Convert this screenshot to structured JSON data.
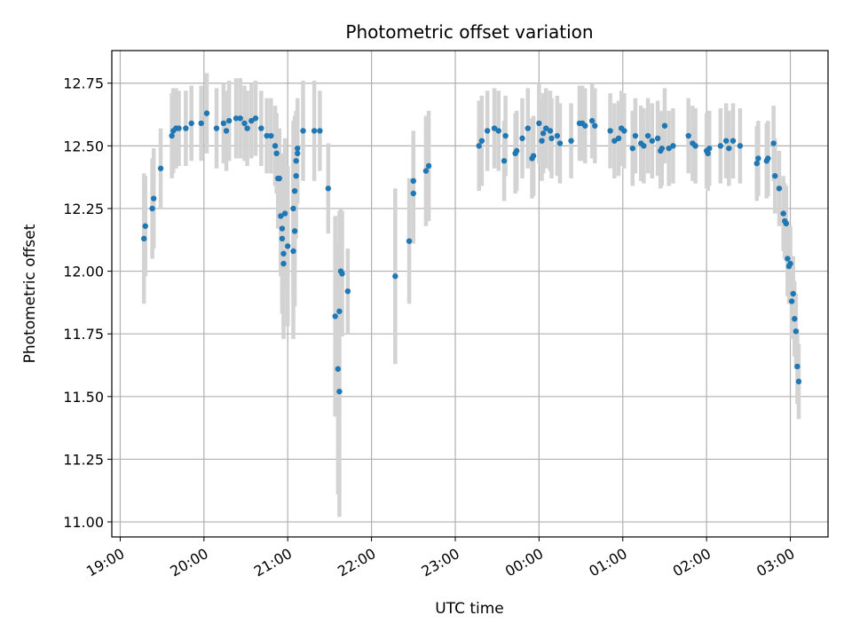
{
  "chart_data": {
    "type": "scatter",
    "title": "Photometric offset variation",
    "xlabel": "UTC time",
    "ylabel": "Photometric offset",
    "grid": true,
    "x_tick_labels": [
      "19:00",
      "20:00",
      "21:00",
      "22:00",
      "23:00",
      "00:00",
      "01:00",
      "02:00",
      "03:00"
    ],
    "y_tick_labels": [
      "11.00",
      "11.25",
      "11.50",
      "11.75",
      "12.00",
      "12.25",
      "12.50",
      "12.75"
    ],
    "x_ticks_hours": [
      19,
      20,
      21,
      22,
      23,
      24,
      25,
      26,
      27
    ],
    "y_ticks": [
      11.0,
      11.25,
      11.5,
      11.75,
      12.0,
      12.25,
      12.5,
      12.75
    ],
    "xlim_hours": [
      18.9,
      27.45
    ],
    "ylim": [
      10.94,
      12.88
    ],
    "colors": {
      "marker": "#1f77b4",
      "errorbar": "#d3d3d3",
      "grid": "#b0b0b0"
    },
    "points": [
      [
        "19:17",
        12.13,
        0.26
      ],
      [
        "19:18",
        12.18,
        0.2
      ],
      [
        "19:23",
        12.25,
        0.2
      ],
      [
        "19:24",
        12.29,
        0.2
      ],
      [
        "19:29",
        12.41,
        0.16
      ],
      [
        "19:37",
        12.54,
        0.17
      ],
      [
        "19:38",
        12.56,
        0.17
      ],
      [
        "19:40",
        12.57,
        0.16
      ],
      [
        "19:42",
        12.57,
        0.15
      ],
      [
        "19:47",
        12.57,
        0.15
      ],
      [
        "19:51",
        12.59,
        0.15
      ],
      [
        "19:58",
        12.59,
        0.15
      ],
      [
        "20:02",
        12.63,
        0.16
      ],
      [
        "20:09",
        12.57,
        0.16
      ],
      [
        "20:14",
        12.59,
        0.16
      ],
      [
        "20:16",
        12.56,
        0.16
      ],
      [
        "20:18",
        12.6,
        0.16
      ],
      [
        "20:23",
        12.61,
        0.16
      ],
      [
        "20:26",
        12.61,
        0.16
      ],
      [
        "20:29",
        12.59,
        0.15
      ],
      [
        "20:31",
        12.57,
        0.15
      ],
      [
        "20:34",
        12.6,
        0.15
      ],
      [
        "20:37",
        12.61,
        0.15
      ],
      [
        "20:41",
        12.57,
        0.15
      ],
      [
        "20:45",
        12.54,
        0.15
      ],
      [
        "20:48",
        12.54,
        0.15
      ],
      [
        "20:51",
        12.5,
        0.16
      ],
      [
        "20:52",
        12.47,
        0.16
      ],
      [
        "20:53",
        12.37,
        0.2
      ],
      [
        "20:54",
        12.37,
        0.2
      ],
      [
        "20:55",
        12.22,
        0.24
      ],
      [
        "20:56",
        12.17,
        0.3
      ],
      [
        "20:56",
        12.13,
        0.3
      ],
      [
        "20:57",
        12.07,
        0.3
      ],
      [
        "20:57",
        12.03,
        0.3
      ],
      [
        "20:58",
        12.23,
        0.3
      ],
      [
        "21:00",
        12.1,
        0.32
      ],
      [
        "21:04",
        12.08,
        0.35
      ],
      [
        "21:04",
        12.25,
        0.35
      ],
      [
        "21:05",
        12.32,
        0.3
      ],
      [
        "21:05",
        12.16,
        0.3
      ],
      [
        "21:06",
        12.38,
        0.25
      ],
      [
        "21:06",
        12.44,
        0.2
      ],
      [
        "21:07",
        12.47,
        0.2
      ],
      [
        "21:07",
        12.49,
        0.2
      ],
      [
        "21:11",
        12.56,
        0.2
      ],
      [
        "21:19",
        12.56,
        0.2
      ],
      [
        "21:23",
        12.56,
        0.16
      ],
      [
        "21:29",
        12.33,
        0.18
      ],
      [
        "21:34",
        11.82,
        0.4
      ],
      [
        "21:36",
        11.61,
        0.5
      ],
      [
        "21:37",
        11.52,
        0.5
      ],
      [
        "21:37",
        11.84,
        0.4
      ],
      [
        "21:38",
        12.0,
        0.25
      ],
      [
        "21:39",
        11.99,
        0.25
      ],
      [
        "21:43",
        11.92,
        0.17
      ],
      [
        "22:17",
        11.98,
        0.35
      ],
      [
        "22:27",
        12.12,
        0.25
      ],
      [
        "22:30",
        12.31,
        0.2
      ],
      [
        "22:30",
        12.36,
        0.2
      ],
      [
        "22:39",
        12.4,
        0.22
      ],
      [
        "22:41",
        12.42,
        0.22
      ],
      [
        "23:17",
        12.5,
        0.18
      ],
      [
        "23:19",
        12.52,
        0.18
      ],
      [
        "23:23",
        12.56,
        0.16
      ],
      [
        "23:28",
        12.57,
        0.16
      ],
      [
        "23:31",
        12.56,
        0.16
      ],
      [
        "23:35",
        12.44,
        0.16
      ],
      [
        "23:36",
        12.54,
        0.16
      ],
      [
        "23:43",
        12.47,
        0.16
      ],
      [
        "23:44",
        12.48,
        0.16
      ],
      [
        "23:48",
        12.53,
        0.16
      ],
      [
        "23:52",
        12.57,
        0.16
      ],
      [
        "23:55",
        12.45,
        0.16
      ],
      [
        "23:56",
        12.46,
        0.16
      ],
      [
        "00:00",
        12.59,
        0.16
      ],
      [
        "00:02",
        12.52,
        0.16
      ],
      [
        "00:03",
        12.55,
        0.16
      ],
      [
        "00:05",
        12.57,
        0.16
      ],
      [
        "00:08",
        12.56,
        0.16
      ],
      [
        "00:09",
        12.53,
        0.16
      ],
      [
        "00:13",
        12.54,
        0.16
      ],
      [
        "00:15",
        12.51,
        0.16
      ],
      [
        "00:23",
        12.52,
        0.15
      ],
      [
        "00:29",
        12.59,
        0.15
      ],
      [
        "00:31",
        12.59,
        0.15
      ],
      [
        "00:33",
        12.58,
        0.15
      ],
      [
        "00:38",
        12.6,
        0.15
      ],
      [
        "00:40",
        12.58,
        0.15
      ],
      [
        "00:51",
        12.56,
        0.15
      ],
      [
        "00:54",
        12.52,
        0.15
      ],
      [
        "00:57",
        12.53,
        0.15
      ],
      [
        "00:59",
        12.57,
        0.15
      ],
      [
        "01:01",
        12.56,
        0.15
      ],
      [
        "01:07",
        12.49,
        0.15
      ],
      [
        "01:09",
        12.54,
        0.15
      ],
      [
        "01:13",
        12.51,
        0.15
      ],
      [
        "01:15",
        12.5,
        0.15
      ],
      [
        "01:18",
        12.54,
        0.15
      ],
      [
        "01:21",
        12.52,
        0.15
      ],
      [
        "01:25",
        12.53,
        0.15
      ],
      [
        "01:27",
        12.48,
        0.15
      ],
      [
        "01:28",
        12.49,
        0.15
      ],
      [
        "01:30",
        12.58,
        0.15
      ],
      [
        "01:33",
        12.49,
        0.15
      ],
      [
        "01:36",
        12.5,
        0.15
      ],
      [
        "01:47",
        12.54,
        0.15
      ],
      [
        "01:50",
        12.51,
        0.15
      ],
      [
        "01:52",
        12.5,
        0.15
      ],
      [
        "02:00",
        12.48,
        0.15
      ],
      [
        "02:01",
        12.47,
        0.15
      ],
      [
        "02:02",
        12.49,
        0.15
      ],
      [
        "02:10",
        12.5,
        0.15
      ],
      [
        "02:14",
        12.52,
        0.15
      ],
      [
        "02:16",
        12.49,
        0.15
      ],
      [
        "02:19",
        12.52,
        0.15
      ],
      [
        "02:24",
        12.5,
        0.15
      ],
      [
        "02:36",
        12.43,
        0.15
      ],
      [
        "02:37",
        12.45,
        0.15
      ],
      [
        "02:43",
        12.44,
        0.15
      ],
      [
        "02:44",
        12.45,
        0.15
      ],
      [
        "02:48",
        12.51,
        0.15
      ],
      [
        "02:49",
        12.38,
        0.15
      ],
      [
        "02:52",
        12.33,
        0.15
      ],
      [
        "02:55",
        12.23,
        0.15
      ],
      [
        "02:56",
        12.2,
        0.15
      ],
      [
        "02:57",
        12.19,
        0.15
      ],
      [
        "02:58",
        12.05,
        0.15
      ],
      [
        "02:59",
        12.02,
        0.15
      ],
      [
        "03:00",
        12.03,
        0.15
      ],
      [
        "03:01",
        11.88,
        0.15
      ],
      [
        "03:02",
        11.91,
        0.15
      ],
      [
        "03:03",
        11.81,
        0.15
      ],
      [
        "03:04",
        11.76,
        0.15
      ],
      [
        "03:05",
        11.62,
        0.15
      ],
      [
        "03:06",
        11.56,
        0.15
      ]
    ]
  }
}
